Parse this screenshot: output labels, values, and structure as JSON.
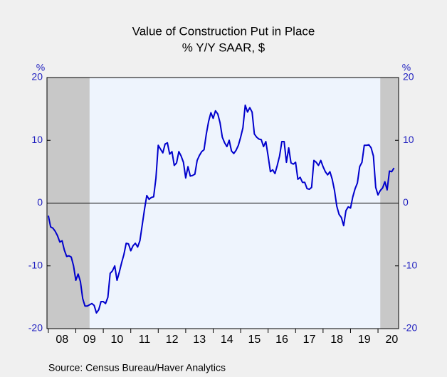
{
  "chart_data": {
    "type": "line",
    "title": "Value of Construction Put in Place",
    "subtitle": "% Y/Y   SAAR, $",
    "y_unit": "%",
    "y2_unit": "%",
    "source": "Source:  Census Bureau/Haver Analytics",
    "color": "#0000cc",
    "xlim": [
      2007.95,
      2020.75
    ],
    "xticks": [
      {
        "value": 2008,
        "label": "08"
      },
      {
        "value": 2009,
        "label": "09"
      },
      {
        "value": 2010,
        "label": "10"
      },
      {
        "value": 2011,
        "label": "11"
      },
      {
        "value": 2012,
        "label": "12"
      },
      {
        "value": 2013,
        "label": "13"
      },
      {
        "value": 2014,
        "label": "14"
      },
      {
        "value": 2015,
        "label": "15"
      },
      {
        "value": 2016,
        "label": "16"
      },
      {
        "value": 2017,
        "label": "17"
      },
      {
        "value": 2018,
        "label": "18"
      },
      {
        "value": 2019,
        "label": "19"
      },
      {
        "value": 2020,
        "label": "20"
      }
    ],
    "ylim": [
      -20,
      20
    ],
    "yticks": [
      -20,
      -10,
      0,
      10,
      20
    ],
    "y2lim": [
      -20,
      20
    ],
    "y2ticks": [
      -20,
      -10,
      0,
      10,
      20
    ],
    "shaded_periods": [
      [
        2007.917,
        2009.5
      ],
      [
        2020.083,
        2020.75
      ]
    ],
    "x": [
      2008.0,
      2008.083,
      2008.167,
      2008.25,
      2008.333,
      2008.417,
      2008.5,
      2008.583,
      2008.667,
      2008.75,
      2008.833,
      2008.917,
      2009.0,
      2009.083,
      2009.167,
      2009.25,
      2009.333,
      2009.417,
      2009.5,
      2009.583,
      2009.667,
      2009.75,
      2009.833,
      2009.917,
      2010.0,
      2010.083,
      2010.167,
      2010.25,
      2010.333,
      2010.417,
      2010.5,
      2010.583,
      2010.667,
      2010.75,
      2010.833,
      2010.917,
      2011.0,
      2011.083,
      2011.167,
      2011.25,
      2011.333,
      2011.417,
      2011.5,
      2011.583,
      2011.667,
      2011.75,
      2011.833,
      2011.917,
      2012.0,
      2012.083,
      2012.167,
      2012.25,
      2012.333,
      2012.417,
      2012.5,
      2012.583,
      2012.667,
      2012.75,
      2012.833,
      2012.917,
      2013.0,
      2013.083,
      2013.167,
      2013.25,
      2013.333,
      2013.417,
      2013.5,
      2013.583,
      2013.667,
      2013.75,
      2013.833,
      2013.917,
      2014.0,
      2014.083,
      2014.167,
      2014.25,
      2014.333,
      2014.417,
      2014.5,
      2014.583,
      2014.667,
      2014.75,
      2014.833,
      2014.917,
      2015.0,
      2015.083,
      2015.167,
      2015.25,
      2015.333,
      2015.417,
      2015.5,
      2015.583,
      2015.667,
      2015.75,
      2015.833,
      2015.917,
      2016.0,
      2016.083,
      2016.167,
      2016.25,
      2016.333,
      2016.417,
      2016.5,
      2016.583,
      2016.667,
      2016.75,
      2016.833,
      2016.917,
      2017.0,
      2017.083,
      2017.167,
      2017.25,
      2017.333,
      2017.417,
      2017.5,
      2017.583,
      2017.667,
      2017.75,
      2017.833,
      2017.917,
      2018.0,
      2018.083,
      2018.167,
      2018.25,
      2018.333,
      2018.417,
      2018.5,
      2018.583,
      2018.667,
      2018.75,
      2018.833,
      2018.917,
      2019.0,
      2019.083,
      2019.167,
      2019.25,
      2019.333,
      2019.417,
      2019.5,
      2019.583,
      2019.667,
      2019.75,
      2019.833,
      2019.917,
      2020.0,
      2020.083,
      2020.167,
      2020.25,
      2020.333,
      2020.417,
      2020.5,
      2020.583
    ],
    "values": [
      -2,
      -3.8,
      -4,
      -4.5,
      -5.2,
      -6.2,
      -6,
      -7.5,
      -8.5,
      -8.4,
      -8.6,
      -10,
      -12.3,
      -11.3,
      -12.5,
      -15.2,
      -16.4,
      -16.4,
      -16.2,
      -16,
      -16.3,
      -17.5,
      -17,
      -15.7,
      -15.7,
      -16,
      -15,
      -11.2,
      -10.8,
      -10,
      -12.3,
      -11,
      -9.5,
      -8.2,
      -6.4,
      -6.5,
      -7.6,
      -6.8,
      -6.4,
      -7,
      -6,
      -3.5,
      -1,
      1.2,
      0.6,
      0.9,
      1,
      4,
      9.2,
      8.6,
      8,
      9.4,
      9.6,
      7.8,
      8.2,
      6,
      6.4,
      8.2,
      7.5,
      6.5,
      4,
      5.8,
      4.3,
      4.4,
      4.6,
      6.8,
      7.6,
      8.2,
      8.5,
      11,
      13,
      14.4,
      13.5,
      14.7,
      14.2,
      12.8,
      10.5,
      9.6,
      9,
      10,
      8.3,
      7.9,
      8.4,
      9.2,
      10.5,
      12,
      15.6,
      14.5,
      15.2,
      14.5,
      11,
      10.5,
      10.2,
      10.1,
      9,
      9.8,
      7.5,
      5,
      5.3,
      4.7,
      6,
      7.5,
      9.8,
      9.8,
      6.5,
      8.8,
      6.4,
      6.2,
      6.5,
      3.8,
      4.1,
      3.3,
      3.3,
      2.3,
      2.2,
      2.5,
      6.8,
      6.5,
      6,
      6.8,
      5.8,
      5,
      4.5,
      5,
      3.8,
      2,
      -0.5,
      -1.8,
      -2.3,
      -3.6,
      -1.2,
      -0.6,
      -0.8,
      1,
      2.3,
      3.2,
      5.8,
      6.5,
      9.2,
      9.2,
      9.3,
      8.8,
      7.5,
      2.5,
      1.3,
      2,
      2.4,
      3.4,
      2.1,
      5.1,
      5,
      5.6
    ]
  }
}
